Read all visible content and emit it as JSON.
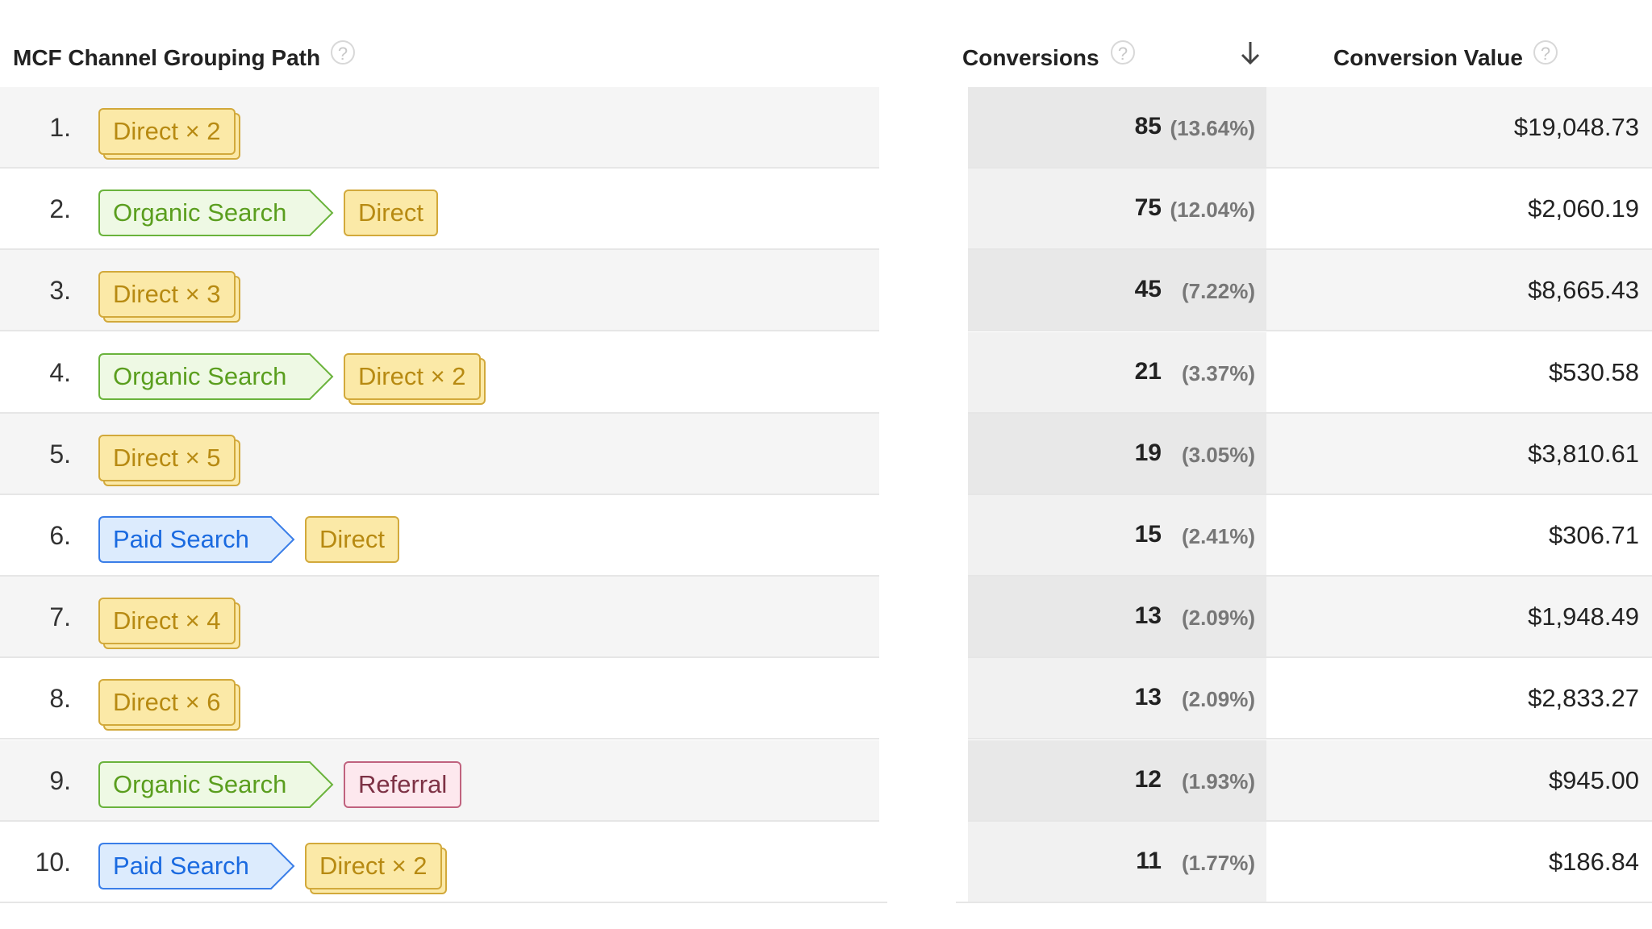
{
  "header": {
    "path_col": "MCF Channel Grouping Path",
    "conversions_col": "Conversions",
    "value_col": "Conversion Value",
    "help_glyph": "?"
  },
  "colors": {
    "direct_fill": "#fbe9a7",
    "direct_border": "#d2a93b",
    "organic_fill": "#eef9e4",
    "organic_border": "#6ab33c",
    "organic_text": "#5a9e1e",
    "paid_fill": "#dcebfd",
    "paid_border": "#3a7ee8",
    "paid_text": "#1a6ae0",
    "referral_fill": "#fde8ee",
    "referral_border": "#c0627e"
  },
  "rows": [
    {
      "num": "1.",
      "conv": "85",
      "pct": "(13.64%)",
      "value": "$19,048.73"
    },
    {
      "num": "2.",
      "conv": "75",
      "pct": "(12.04%)",
      "value": "$2,060.19"
    },
    {
      "num": "3.",
      "conv": "45",
      "pct": "(7.22%)",
      "value": "$8,665.43"
    },
    {
      "num": "4.",
      "conv": "21",
      "pct": "(3.37%)",
      "value": "$530.58"
    },
    {
      "num": "5.",
      "conv": "19",
      "pct": "(3.05%)",
      "value": "$3,810.61"
    },
    {
      "num": "6.",
      "conv": "15",
      "pct": "(2.41%)",
      "value": "$306.71"
    },
    {
      "num": "7.",
      "conv": "13",
      "pct": "(2.09%)",
      "value": "$1,948.49"
    },
    {
      "num": "8.",
      "conv": "13",
      "pct": "(2.09%)",
      "value": "$2,833.27"
    },
    {
      "num": "9.",
      "conv": "12",
      "pct": "(1.93%)",
      "value": "$945.00"
    },
    {
      "num": "10.",
      "conv": "11",
      "pct": "(1.77%)",
      "value": "$186.84"
    }
  ],
  "paths": [
    [
      {
        "kind": "direct",
        "label": "Direct × 2",
        "stack": true
      }
    ],
    [
      {
        "kind": "organic",
        "label": "Organic Search"
      },
      {
        "kind": "direct",
        "label": "Direct"
      }
    ],
    [
      {
        "kind": "direct",
        "label": "Direct × 3",
        "stack": true
      }
    ],
    [
      {
        "kind": "organic",
        "label": "Organic Search"
      },
      {
        "kind": "direct",
        "label": "Direct × 2",
        "stack": true
      }
    ],
    [
      {
        "kind": "direct",
        "label": "Direct × 5",
        "stack": true
      }
    ],
    [
      {
        "kind": "paid",
        "label": "Paid Search"
      },
      {
        "kind": "direct",
        "label": "Direct"
      }
    ],
    [
      {
        "kind": "direct",
        "label": "Direct × 4",
        "stack": true
      }
    ],
    [
      {
        "kind": "direct",
        "label": "Direct × 6",
        "stack": true
      }
    ],
    [
      {
        "kind": "organic",
        "label": "Organic Search"
      },
      {
        "kind": "referral",
        "label": "Referral"
      }
    ],
    [
      {
        "kind": "paid",
        "label": "Paid Search"
      },
      {
        "kind": "direct",
        "label": "Direct × 2",
        "stack": true
      }
    ]
  ]
}
